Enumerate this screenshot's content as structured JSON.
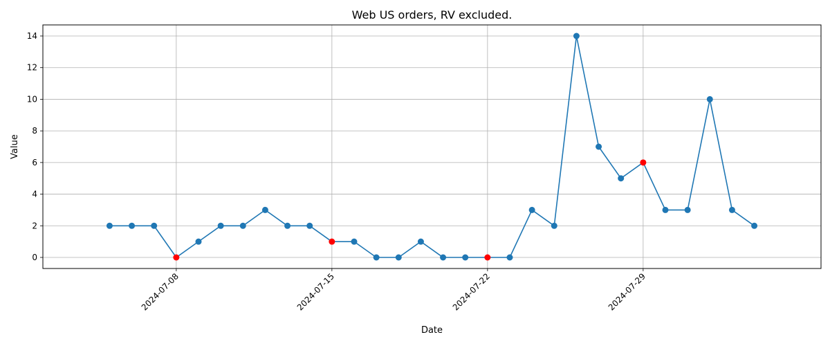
{
  "chart_data": {
    "type": "line",
    "title": "Web US orders, RV excluded.",
    "xlabel": "Date",
    "ylabel": "Value",
    "x": [
      "2024-07-05",
      "2024-07-06",
      "2024-07-07",
      "2024-07-08",
      "2024-07-09",
      "2024-07-10",
      "2024-07-11",
      "2024-07-12",
      "2024-07-13",
      "2024-07-14",
      "2024-07-15",
      "2024-07-16",
      "2024-07-17",
      "2024-07-18",
      "2024-07-19",
      "2024-07-20",
      "2024-07-21",
      "2024-07-22",
      "2024-07-23",
      "2024-07-24",
      "2024-07-25",
      "2024-07-26",
      "2024-07-27",
      "2024-07-28",
      "2024-07-29",
      "2024-07-30",
      "2024-07-31",
      "2024-08-01",
      "2024-08-02",
      "2024-08-03"
    ],
    "series": [
      {
        "values": [
          2,
          2,
          2,
          0,
          1,
          2,
          2,
          3,
          2,
          2,
          1,
          1,
          0,
          0,
          1,
          0,
          0,
          0,
          0,
          3,
          2,
          14,
          7,
          5,
          6,
          3,
          3,
          10,
          3,
          2
        ],
        "color": "#1f77b4"
      }
    ],
    "highlighted_x": [
      "2024-07-08",
      "2024-07-15",
      "2024-07-22",
      "2024-07-29"
    ],
    "highlight_color": "#ff0000",
    "x_ticks": [
      "2024-07-08",
      "2024-07-15",
      "2024-07-22",
      "2024-07-29"
    ],
    "y_ticks": [
      0,
      2,
      4,
      6,
      8,
      10,
      12,
      14
    ],
    "ylim": [
      -0.7,
      14.7
    ],
    "xlim": [
      "2024-07-02",
      "2024-08-06"
    ],
    "grid": true,
    "legend": "none"
  }
}
